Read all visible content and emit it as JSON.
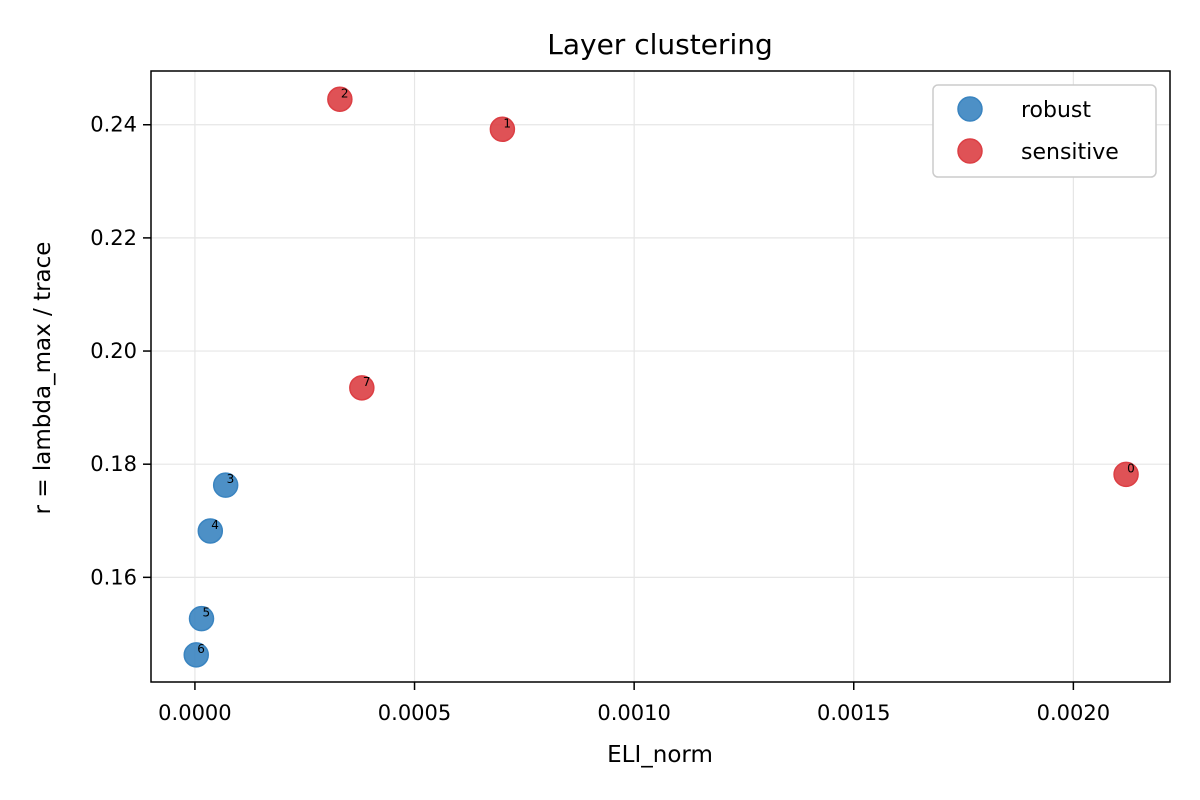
{
  "chart_data": {
    "type": "scatter",
    "title": "Layer clustering",
    "xlabel": "ELI_norm",
    "ylabel": "r = lambda_max / trace",
    "xlim": [
      -0.0001,
      0.00222
    ],
    "ylim": [
      0.1415,
      0.2495
    ],
    "xticks": [
      0.0,
      0.0005,
      0.001,
      0.0015,
      0.002
    ],
    "xtick_labels": [
      "0.0000",
      "0.0005",
      "0.0010",
      "0.0015",
      "0.0020"
    ],
    "yticks": [
      0.16,
      0.18,
      0.2,
      0.22,
      0.24
    ],
    "ytick_labels": [
      "0.16",
      "0.18",
      "0.20",
      "0.22",
      "0.24"
    ],
    "grid": true,
    "legend_position": "top-right",
    "series": [
      {
        "name": "robust",
        "color": "#3a84c0",
        "points": [
          {
            "label": "3",
            "x": 7e-05,
            "y": 0.1763
          },
          {
            "label": "4",
            "x": 3.5e-05,
            "y": 0.1682
          },
          {
            "label": "5",
            "x": 1.5e-05,
            "y": 0.1527
          },
          {
            "label": "6",
            "x": 3e-06,
            "y": 0.1463
          }
        ]
      },
      {
        "name": "sensitive",
        "color": "#dc3f44",
        "points": [
          {
            "label": "2",
            "x": 0.00033,
            "y": 0.2445
          },
          {
            "label": "1",
            "x": 0.0007,
            "y": 0.2392
          },
          {
            "label": "7",
            "x": 0.00038,
            "y": 0.1935
          },
          {
            "label": "0",
            "x": 0.00212,
            "y": 0.1782
          }
        ]
      }
    ]
  }
}
